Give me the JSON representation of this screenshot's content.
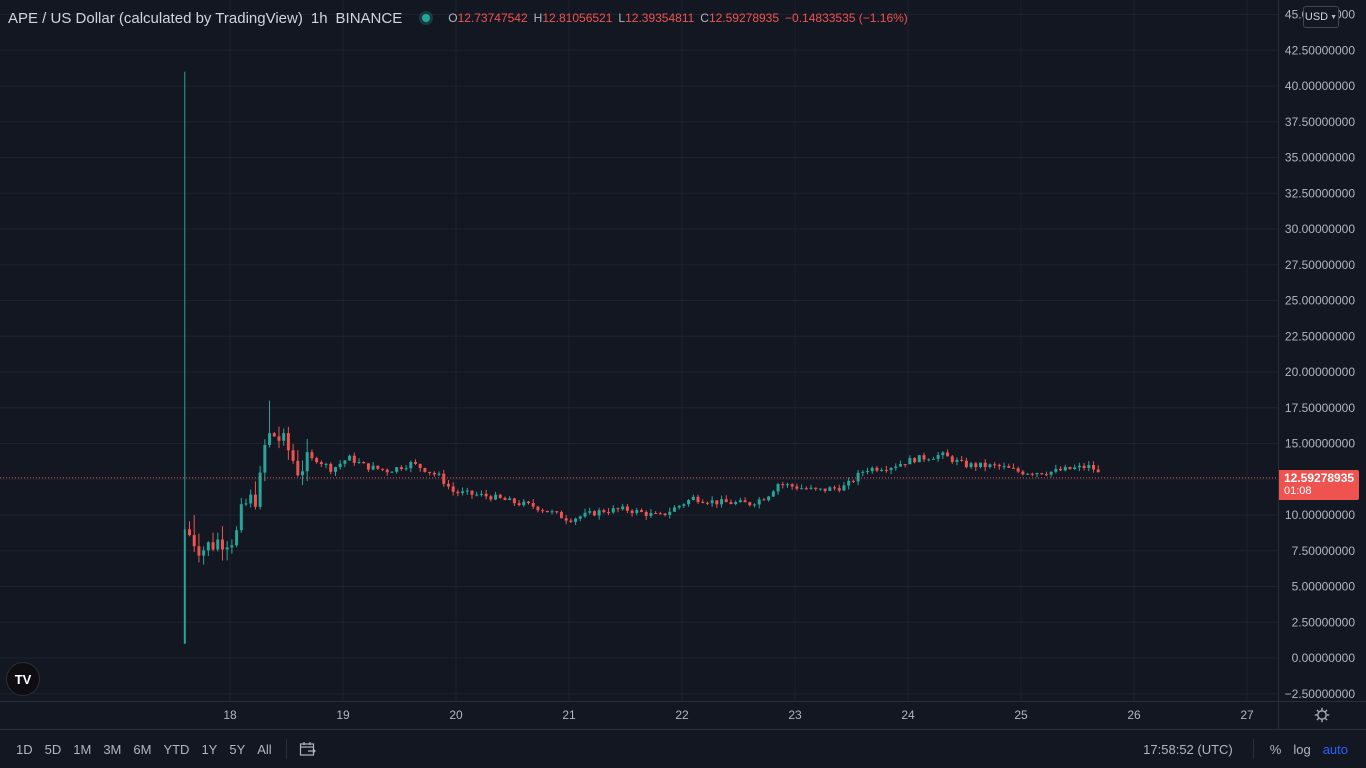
{
  "header": {
    "symbol": "APE / US Dollar (calculated by TradingView)",
    "interval": "1h",
    "exchange": "BINANCE",
    "ohlc": {
      "o_label": "O",
      "o": "12.73747542",
      "h_label": "H",
      "h": "12.81056521",
      "l_label": "L",
      "l": "12.39354811",
      "c_label": "C",
      "c": "12.59278935",
      "change": "−0.14833535 (−1.16%)"
    }
  },
  "currency": {
    "label": "USD"
  },
  "price_tag": {
    "price": "12.59278935",
    "countdown": "01:08"
  },
  "logo": {
    "text": "TV"
  },
  "bottom": {
    "ranges": [
      "1D",
      "5D",
      "1M",
      "3M",
      "6M",
      "YTD",
      "1Y",
      "5Y",
      "All"
    ],
    "clock": "17:58:52 (UTC)",
    "percent": "%",
    "log": "log",
    "auto": "auto"
  },
  "colors": {
    "up": "#26a69a",
    "down": "#ef5350",
    "background": "#131722",
    "grid": "#2a2e39",
    "text": "#b2b5be",
    "last_price_line": "#ef5350",
    "auto_active": "#2962ff"
  },
  "icons": {
    "goto_date": "calendar-goto-icon",
    "settings": "gear-icon",
    "currency_dropdown": "chevron-down-icon"
  },
  "chart_data": {
    "type": "candlestick",
    "interval": "1h",
    "x_labels": [
      "18",
      "19",
      "20",
      "21",
      "22",
      "23",
      "24",
      "25",
      "26",
      "27"
    ],
    "y_ticks": [
      "−2.50000000",
      "0.00000000",
      "2.50000000",
      "5.00000000",
      "7.50000000",
      "10.00000000",
      "12.50000000",
      "15.00000000",
      "17.50000000",
      "20.00000000",
      "22.50000000",
      "25.00000000",
      "27.50000000",
      "30.00000000",
      "32.50000000",
      "35.00000000",
      "37.50000000",
      "40.00000000",
      "42.50000000",
      "45.00000000"
    ],
    "ylim": [
      -3,
      45.5
    ],
    "last_price": 12.59278935,
    "grid": true,
    "first_candle": {
      "day": 17.6,
      "open": 1.0,
      "high": 41.0,
      "low": 1.0,
      "close": 9.0
    },
    "path_points": [
      [
        17.6,
        9.0
      ],
      [
        17.75,
        7.6
      ],
      [
        17.92,
        8.3
      ],
      [
        18.05,
        8.4
      ],
      [
        18.12,
        10.6
      ],
      [
        18.25,
        11.4
      ],
      [
        18.32,
        15.4
      ],
      [
        18.4,
        15.6
      ],
      [
        18.5,
        14.8
      ],
      [
        18.6,
        13.2
      ],
      [
        18.75,
        14.0
      ],
      [
        18.9,
        13.2
      ],
      [
        19.05,
        14.0
      ],
      [
        19.2,
        13.4
      ],
      [
        19.4,
        13.1
      ],
      [
        19.6,
        13.6
      ],
      [
        19.7,
        13.3
      ],
      [
        19.85,
        12.7
      ],
      [
        19.98,
        11.6
      ],
      [
        20.3,
        11.3
      ],
      [
        20.5,
        10.9
      ],
      [
        20.7,
        10.6
      ],
      [
        20.9,
        10.0
      ],
      [
        21.0,
        9.7
      ],
      [
        21.3,
        10.3
      ],
      [
        21.5,
        10.4
      ],
      [
        21.8,
        9.9
      ],
      [
        22.1,
        11.2
      ],
      [
        22.3,
        10.9
      ],
      [
        22.6,
        10.8
      ],
      [
        22.75,
        11.3
      ],
      [
        22.85,
        12.2
      ],
      [
        23.05,
        11.9
      ],
      [
        23.2,
        11.7
      ],
      [
        23.45,
        12.0
      ],
      [
        23.62,
        13.2
      ],
      [
        23.85,
        13.4
      ],
      [
        24.05,
        13.9
      ],
      [
        24.3,
        14.2
      ],
      [
        24.5,
        13.5
      ],
      [
        24.8,
        13.4
      ],
      [
        25.0,
        13.0
      ],
      [
        25.25,
        13.0
      ],
      [
        25.5,
        13.3
      ],
      [
        25.62,
        13.4
      ],
      [
        25.72,
        12.6
      ]
    ]
  }
}
